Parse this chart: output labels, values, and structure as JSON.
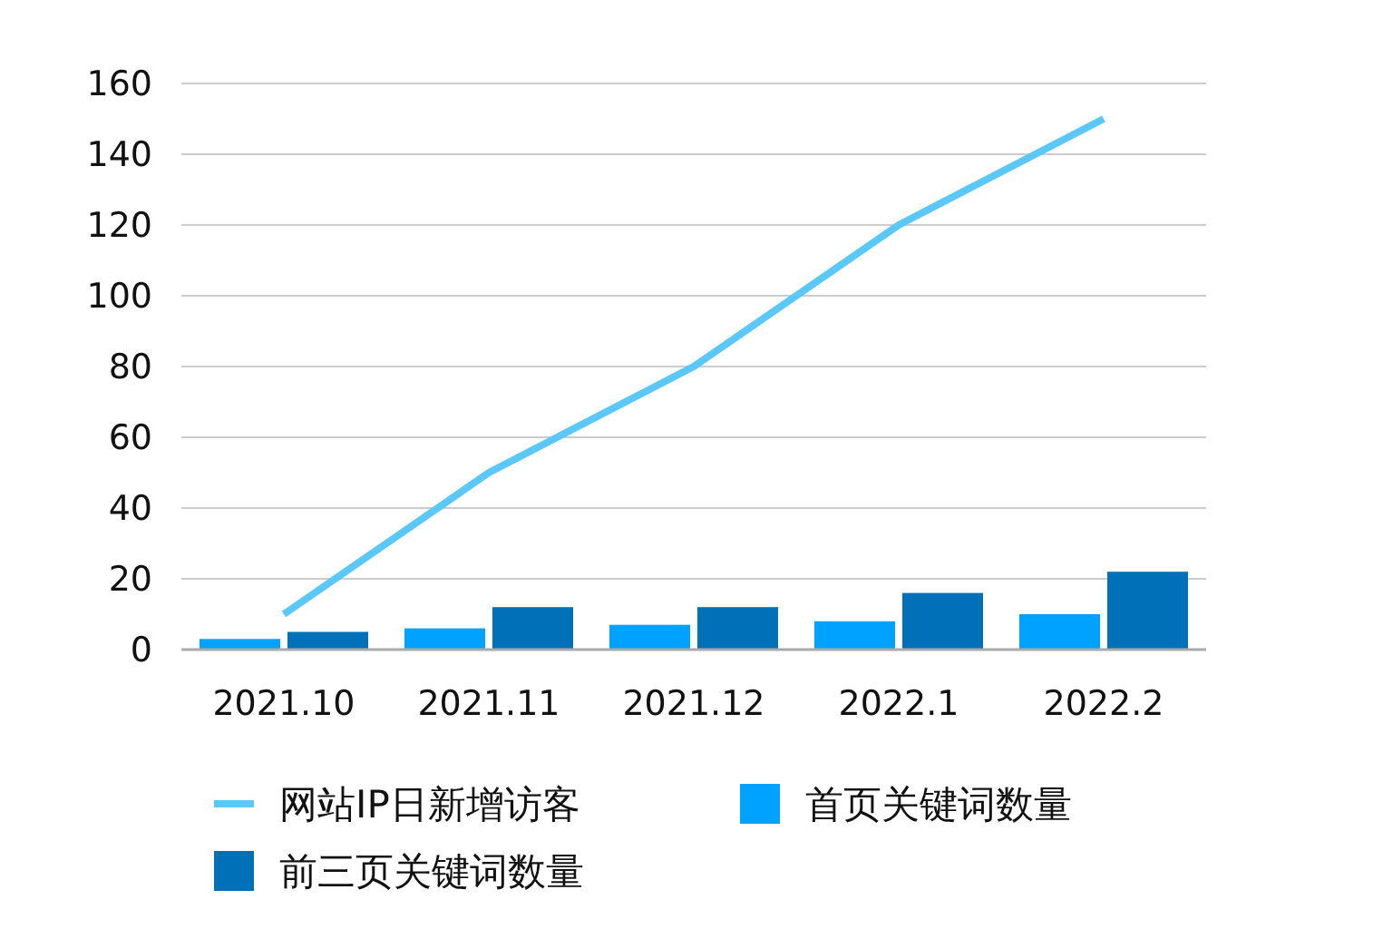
{
  "chart_data": {
    "type": "bar",
    "categories": [
      "2021.10",
      "2021.11",
      "2021.12",
      "2022.1",
      "2022.2"
    ],
    "series": [
      {
        "name": "网站IP日新增访客",
        "type": "line",
        "color": "#5ac8fa",
        "values": [
          10,
          50,
          80,
          120,
          150
        ]
      },
      {
        "name": "首页关键词数量",
        "color": "#00a2ff",
        "values": [
          3,
          6,
          7,
          8,
          10
        ]
      },
      {
        "name": "前三页关键词数量",
        "color": "#0070b8",
        "values": [
          5,
          12,
          12,
          16,
          22
        ]
      }
    ],
    "ylim": [
      0,
      160
    ],
    "yticks": [
      0,
      20,
      40,
      60,
      80,
      100,
      120,
      140,
      160
    ],
    "grid": "y",
    "legend": "bottom",
    "marker": "none",
    "line_style": "solid"
  }
}
